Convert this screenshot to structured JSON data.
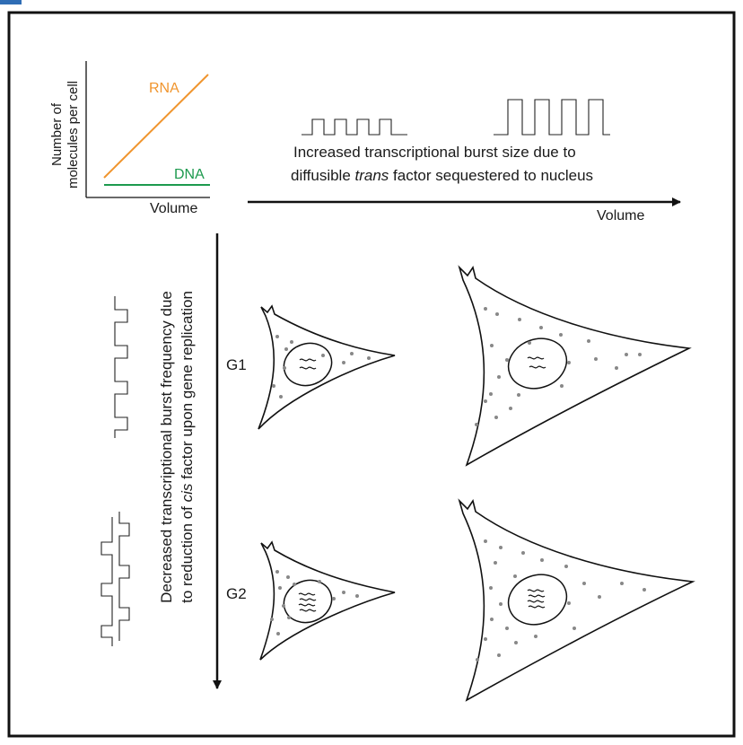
{
  "mini_chart": {
    "ylabel_line1": "Number of",
    "ylabel_line2": "molecules per cell",
    "xlabel": "Volume",
    "series": [
      {
        "name": "RNA",
        "color": "#f0952e"
      },
      {
        "name": "DNA",
        "color": "#1d9a4e"
      }
    ]
  },
  "horizontal_axis": {
    "label": "Volume",
    "caption_line1": "Increased transcriptional burst size due to",
    "caption_pre": "diffusible ",
    "caption_italic": "trans",
    "caption_post": " factor sequestered to nucleus"
  },
  "vertical_axis": {
    "caption_line1": "Decreased transcriptional burst frequency due",
    "caption_pre": "to reduction of ",
    "caption_italic": "cis",
    "caption_post": " factor upon gene replication"
  },
  "phases": {
    "g1": "G1",
    "g2": "G2"
  },
  "colors": {
    "frame": "#111111",
    "accent_bar": "#2f6db5",
    "dot": "#888888"
  }
}
